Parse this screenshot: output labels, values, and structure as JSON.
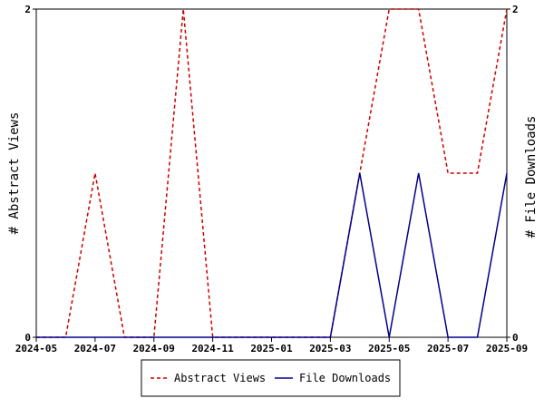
{
  "chart_data": {
    "type": "line",
    "x": [
      "2024-05",
      "2024-06",
      "2024-07",
      "2024-08",
      "2024-09",
      "2024-10",
      "2024-11",
      "2024-12",
      "2025-01",
      "2025-02",
      "2025-03",
      "2025-04",
      "2025-05",
      "2025-06",
      "2025-07",
      "2025-08",
      "2025-09"
    ],
    "x_ticks": [
      "2024-05",
      "2024-07",
      "2024-09",
      "2024-11",
      "2025-01",
      "2025-03",
      "2025-05",
      "2025-07",
      "2025-09"
    ],
    "series": [
      {
        "name": "Abstract Views",
        "color": "#cc0000",
        "dash": "dashed",
        "axis": "left",
        "values": [
          0,
          0,
          1,
          0,
          0,
          2,
          0,
          0,
          0,
          0,
          0,
          1,
          2,
          2,
          1,
          1,
          2
        ]
      },
      {
        "name": "File Downloads",
        "color": "#00008b",
        "dash": "solid",
        "axis": "right",
        "values": [
          0,
          0,
          0,
          0,
          0,
          0,
          0,
          0,
          0,
          0,
          0,
          1,
          0,
          1,
          0,
          0,
          1
        ]
      }
    ],
    "ylabel_left": "# Abstract Views",
    "ylabel_right": "# File Downloads",
    "ylim": [
      0,
      2
    ],
    "yticks_left": [
      "0",
      "2"
    ],
    "yticks_right": [
      "0",
      "2"
    ],
    "grid": false,
    "legend_position": "bottom"
  }
}
